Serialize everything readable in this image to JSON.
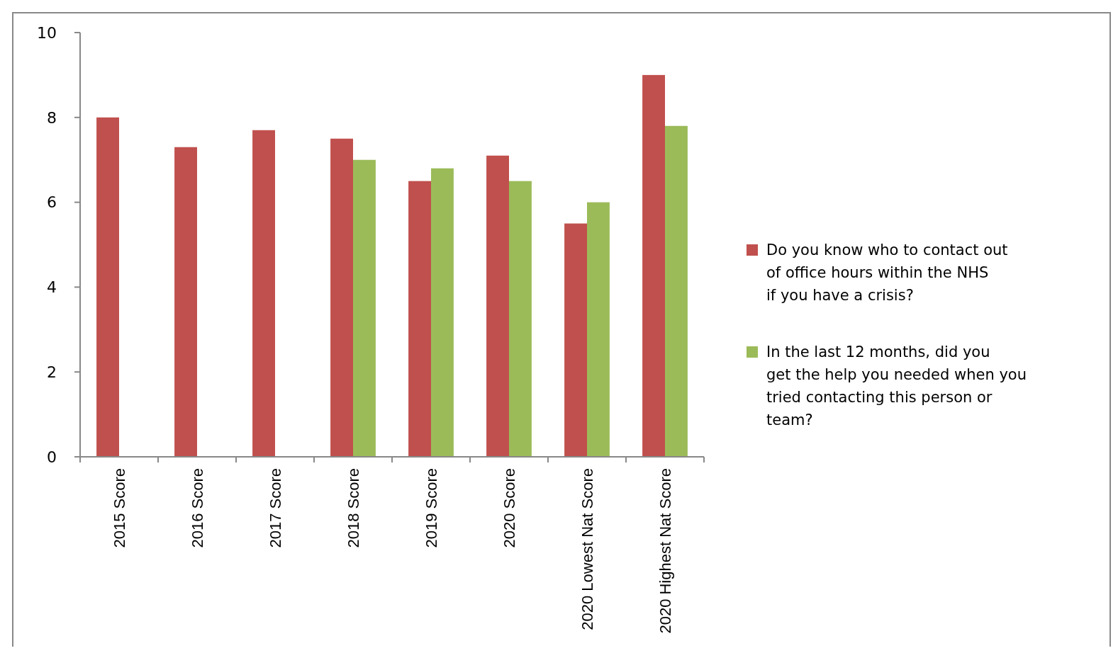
{
  "chart_data": {
    "type": "bar",
    "categories": [
      "2015 Score",
      "2016 Score",
      "2017 Score",
      "2018 Score",
      "2019 Score",
      "2020 Score",
      "2020 Lowest Nat Score",
      "2020 Highest Nat Score"
    ],
    "series": [
      {
        "name": "Do you know who to contact out of office hours within the NHS if you have a crisis?",
        "color": "#c0504d",
        "values": [
          8.0,
          7.3,
          7.7,
          7.5,
          6.5,
          7.1,
          5.5,
          9.0
        ]
      },
      {
        "name": "In the last 12 months, did you get the help you needed when you tried contacting this person or team?",
        "color": "#9bbb59",
        "values": [
          null,
          null,
          null,
          7.0,
          6.8,
          6.5,
          6.0,
          7.8
        ]
      }
    ],
    "ylim": [
      0,
      10
    ],
    "yticks": [
      0,
      2,
      4,
      6,
      8,
      10
    ],
    "grid": false,
    "legend": "right"
  }
}
